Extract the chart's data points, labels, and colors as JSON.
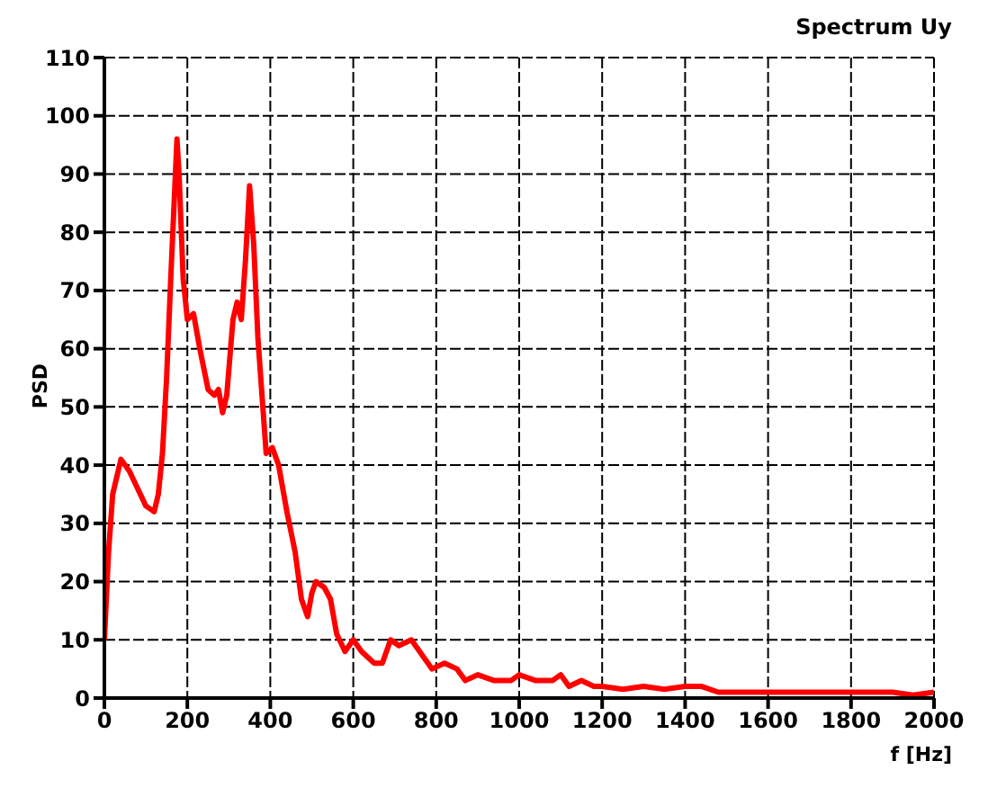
{
  "chart_data": {
    "type": "line",
    "title": "Spectrum Uy",
    "xlabel": "f [Hz]",
    "ylabel": "PSD",
    "x": [
      0,
      10,
      20,
      30,
      40,
      60,
      80,
      100,
      120,
      130,
      140,
      150,
      160,
      170,
      175,
      180,
      190,
      200,
      215,
      230,
      250,
      265,
      275,
      285,
      295,
      310,
      320,
      330,
      340,
      350,
      360,
      370,
      380,
      390,
      405,
      420,
      440,
      460,
      475,
      490,
      500,
      510,
      530,
      545,
      560,
      580,
      600,
      620,
      650,
      670,
      690,
      710,
      740,
      760,
      790,
      820,
      850,
      870,
      900,
      940,
      980,
      1000,
      1040,
      1080,
      1100,
      1120,
      1150,
      1180,
      1200,
      1250,
      1300,
      1350,
      1400,
      1440,
      1480,
      1600,
      1800,
      1900,
      1950,
      2000
    ],
    "series": [
      {
        "color": "#ff0000",
        "values": [
          10,
          25,
          35,
          38,
          41,
          39,
          36,
          33,
          32,
          35,
          42,
          55,
          72,
          88,
          96,
          90,
          72,
          65,
          66,
          60,
          53,
          52,
          53,
          49,
          52,
          65,
          68,
          65,
          75,
          88,
          78,
          62,
          52,
          42,
          43,
          40,
          32,
          25,
          17,
          14,
          18,
          20,
          19,
          17,
          11,
          8,
          10,
          8,
          6,
          6,
          10,
          9,
          10,
          8,
          5,
          6,
          5,
          3,
          4,
          3,
          3,
          4,
          3,
          3,
          4,
          2,
          3,
          2,
          2,
          1.5,
          2,
          1.5,
          2,
          2,
          1,
          1,
          1,
          1,
          0.5,
          1
        ]
      }
    ],
    "xlim": [
      0,
      2000
    ],
    "xticks": [
      0,
      200,
      400,
      600,
      800,
      1000,
      1200,
      1400,
      1600,
      1800,
      2000
    ],
    "ylim": [
      0,
      110
    ],
    "yticks": [
      0,
      10,
      20,
      30,
      40,
      50,
      60,
      70,
      80,
      90,
      100,
      110
    ],
    "grid": true,
    "marker": "none",
    "line_style": "solid"
  }
}
